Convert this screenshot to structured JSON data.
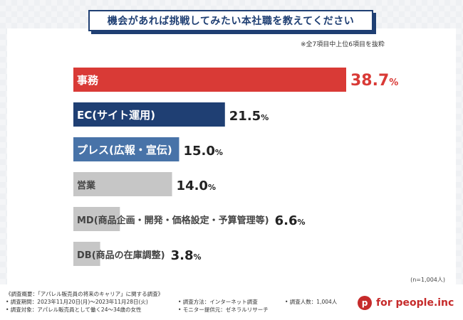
{
  "header": {
    "title": "機会があれば挑戦してみたい本社職を教えてください",
    "note": "※全7項目中上位6項目を抜粋"
  },
  "sample_size": "(n=1,004人)",
  "chart_data": {
    "type": "bar",
    "orientation": "horizontal",
    "title": "機会があれば挑戦してみたい本社職を教えてください",
    "unit": "%",
    "categories": [
      "事務",
      "EC(サイト運用)",
      "プレス(広報・宣伝)",
      "営業",
      "MD(商品企画・開発・価格設定・予算管理等)",
      "DB(商品の在庫調整)"
    ],
    "values": [
      38.7,
      21.5,
      15.0,
      14.0,
      6.6,
      3.8
    ],
    "value_labels": [
      "38.7%",
      "21.5%",
      "15.0%",
      "14.0%",
      "6.6%",
      "3.8%"
    ],
    "colors": [
      "#d93a36",
      "#1f3f73",
      "#4873a8",
      "#c6c6c6",
      "#c6c6c6",
      "#c6c6c6"
    ],
    "xlim": [
      0,
      38.7
    ],
    "grid": false,
    "legend": "none"
  },
  "footer": {
    "lines": [
      "《調査概要：「アパレル販売員の将来のキャリア」に関する調査》",
      "• 調査期間：2023年11月20日(月)～2023年11月28日(火)",
      "• 調査方法：インターネット調査",
      "• 調査人数：1,004人",
      "• 調査対象：アパレル販売員として働く24～34歳の女性",
      "• モニター提供元：ゼネラルリサーチ"
    ],
    "brand": "for people.inc",
    "brand_icon": "p"
  }
}
